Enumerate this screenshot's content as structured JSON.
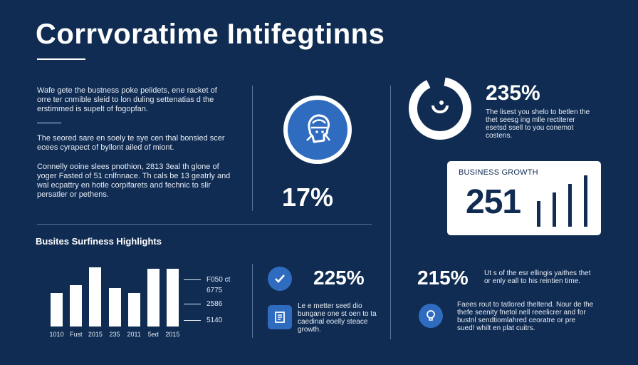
{
  "header": {
    "title": "Corrvoratime Intifegtinns"
  },
  "left_texts": {
    "p1": [
      "Wafe gete the bustness poke pelidets, ene racket of",
      "orre ter cnmible sleid to lon duling settenatias d the",
      "erstimmed is supelt of fogopfan."
    ],
    "p2": [
      "The seored sare en soely te sye cen thal bonsied scer",
      "ecees cyrapect of byllont ailed of miont."
    ],
    "p3": [
      "Connelly ooine slees pnothion, 2813 3eal th glone of",
      "yoger Fasted of 51 cnlfnnace. Th cals be 13 geatrly and",
      "wal ecpattry en hotle corpifarets and fechnic to slir",
      "persatler or pethens."
    ]
  },
  "center_stat": {
    "value": "17%"
  },
  "top_right": {
    "value": "235%",
    "text": [
      "The lisest you shelo to betlen the",
      "thet seesg ing mlle rectiterer",
      "esetsd ssell to you conemot",
      "costens."
    ]
  },
  "growth_card": {
    "label": "BUSINESS GROWTH",
    "value": "251",
    "bar_levels": [
      0.45,
      0.6,
      0.75,
      0.9
    ]
  },
  "highlights": {
    "title": "Busites Surfiness Highlights",
    "chart_data": {
      "type": "bar",
      "categories": [
        "1010",
        "Fust",
        "2015",
        "235",
        "2011",
        "5ed",
        "2015"
      ],
      "values": [
        42,
        52,
        74,
        48,
        42,
        72,
        72
      ],
      "ylim": [
        0,
        80
      ]
    },
    "legend": [
      "F050 ct",
      "6775",
      "2586",
      "5140"
    ]
  },
  "stat_225": {
    "value": "225%",
    "text": [
      "Le e metter seetl dio",
      "bungane one st oen to ta",
      "caedinal eoelly steace",
      "growth."
    ]
  },
  "stat_215": {
    "value": "215%",
    "text": [
      "Ut s of the esr ellingis yaithes thet",
      "or enly eall to his reintien time."
    ],
    "text2": [
      "Faees rout to tatlored theltend. Nour de the",
      "thefe seenity fnetol nell reeelicrer and for",
      "bustnl sendtiomlahred ceoratre or pre",
      "sued! whilt en plat cuitrs."
    ]
  }
}
